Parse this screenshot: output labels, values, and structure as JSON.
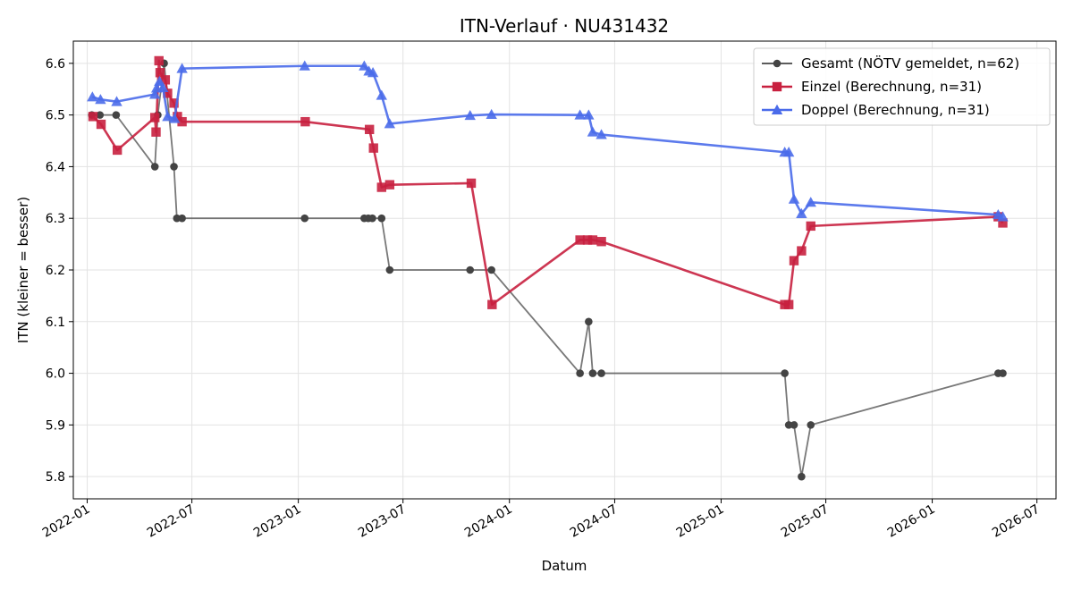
{
  "chart_data": {
    "type": "line",
    "title": "ITN-Verlauf · NU431432",
    "xlabel": "Datum",
    "ylabel": "ITN  (kleiner = besser)",
    "x_axis": {
      "type": "date",
      "range": [
        "2021-12-08",
        "2026-08-03"
      ],
      "ticks": [
        "2022-01",
        "2022-07",
        "2023-01",
        "2023-07",
        "2024-01",
        "2024-07",
        "2025-01",
        "2025-07",
        "2026-01",
        "2026-07"
      ]
    },
    "y_axis": {
      "range": [
        5.757,
        6.643
      ],
      "ticks": [
        "5.8",
        "5.9",
        "6.0",
        "6.1",
        "6.2",
        "6.3",
        "6.4",
        "6.5",
        "6.6"
      ]
    },
    "grid": true,
    "legend": {
      "position": "top-right"
    },
    "series": [
      {
        "name": "Gesamt (NÖTV gemeldet, n=62)",
        "color": "#444444",
        "marker": "circle",
        "points": [
          [
            "2022-01-09",
            6.5
          ],
          [
            "2022-01-23",
            6.5
          ],
          [
            "2022-02-20",
            6.5
          ],
          [
            "2022-04-28",
            6.4
          ],
          [
            "2022-05-03",
            6.5
          ],
          [
            "2022-05-14",
            6.6
          ],
          [
            "2022-05-31",
            6.4
          ],
          [
            "2022-06-05",
            6.3
          ],
          [
            "2022-06-14",
            6.3
          ],
          [
            "2023-01-12",
            6.3
          ],
          [
            "2023-04-25",
            6.3
          ],
          [
            "2023-05-02",
            6.3
          ],
          [
            "2023-05-09",
            6.3
          ],
          [
            "2023-05-25",
            6.3
          ],
          [
            "2023-06-08",
            6.2
          ],
          [
            "2023-10-25",
            6.2
          ],
          [
            "2023-12-01",
            6.2
          ],
          [
            "2024-05-02",
            6.0
          ],
          [
            "2024-05-17",
            6.1
          ],
          [
            "2024-05-24",
            6.0
          ],
          [
            "2024-06-08",
            6.0
          ],
          [
            "2025-04-21",
            6.0
          ],
          [
            "2025-04-28",
            5.9
          ],
          [
            "2025-05-07",
            5.9
          ],
          [
            "2025-05-20",
            5.8
          ],
          [
            "2025-06-05",
            5.9
          ],
          [
            "2026-04-25",
            6.0
          ],
          [
            "2026-05-03",
            6.0
          ]
        ]
      },
      {
        "name": "Einzel (Berechnung, n=31)",
        "color": "#c8203f",
        "marker": "square",
        "points": [
          [
            "2022-01-11",
            6.497
          ],
          [
            "2022-01-25",
            6.482
          ],
          [
            "2022-02-22",
            6.432
          ],
          [
            "2022-04-28",
            6.495
          ],
          [
            "2022-04-30",
            6.467
          ],
          [
            "2022-05-05",
            6.605
          ],
          [
            "2022-05-07",
            6.582
          ],
          [
            "2022-05-16",
            6.568
          ],
          [
            "2022-05-20",
            6.542
          ],
          [
            "2022-05-31",
            6.523
          ],
          [
            "2022-06-06",
            6.497
          ],
          [
            "2022-06-14",
            6.487
          ],
          [
            "2023-01-13",
            6.487
          ],
          [
            "2023-05-04",
            6.472
          ],
          [
            "2023-05-11",
            6.436
          ],
          [
            "2023-05-25",
            6.36
          ],
          [
            "2023-06-08",
            6.365
          ],
          [
            "2023-10-27",
            6.368
          ],
          [
            "2023-12-02",
            6.133
          ],
          [
            "2024-05-02",
            6.258
          ],
          [
            "2024-05-15",
            6.258
          ],
          [
            "2024-05-24",
            6.258
          ],
          [
            "2024-06-08",
            6.255
          ],
          [
            "2025-04-21",
            6.133
          ],
          [
            "2025-04-28",
            6.133
          ],
          [
            "2025-05-07",
            6.218
          ],
          [
            "2025-05-20",
            6.237
          ],
          [
            "2025-06-05",
            6.285
          ],
          [
            "2026-04-25",
            6.303
          ],
          [
            "2026-05-03",
            6.291
          ]
        ]
      },
      {
        "name": "Doppel (Berechnung, n=31)",
        "color": "#4a6bea",
        "marker": "triangle",
        "points": [
          [
            "2022-01-10",
            6.535
          ],
          [
            "2022-01-24",
            6.53
          ],
          [
            "2022-02-21",
            6.526
          ],
          [
            "2022-04-28",
            6.54
          ],
          [
            "2022-05-01",
            6.552
          ],
          [
            "2022-05-06",
            6.565
          ],
          [
            "2022-05-12",
            6.553
          ],
          [
            "2022-05-20",
            6.497
          ],
          [
            "2022-06-01",
            6.493
          ],
          [
            "2022-06-14",
            6.59
          ],
          [
            "2023-01-12",
            6.595
          ],
          [
            "2023-04-25",
            6.595
          ],
          [
            "2023-05-03",
            6.585
          ],
          [
            "2023-05-10",
            6.582
          ],
          [
            "2023-05-25",
            6.538
          ],
          [
            "2023-06-08",
            6.483
          ],
          [
            "2023-10-25",
            6.499
          ],
          [
            "2023-12-01",
            6.501
          ],
          [
            "2024-05-02",
            6.5
          ],
          [
            "2024-05-17",
            6.5
          ],
          [
            "2024-05-24",
            6.467
          ],
          [
            "2024-06-08",
            6.462
          ],
          [
            "2025-04-21",
            6.428
          ],
          [
            "2025-04-28",
            6.428
          ],
          [
            "2025-05-07",
            6.337
          ],
          [
            "2025-05-20",
            6.309
          ],
          [
            "2025-06-05",
            6.331
          ],
          [
            "2026-04-25",
            6.307
          ],
          [
            "2026-05-03",
            6.303
          ]
        ]
      }
    ]
  }
}
